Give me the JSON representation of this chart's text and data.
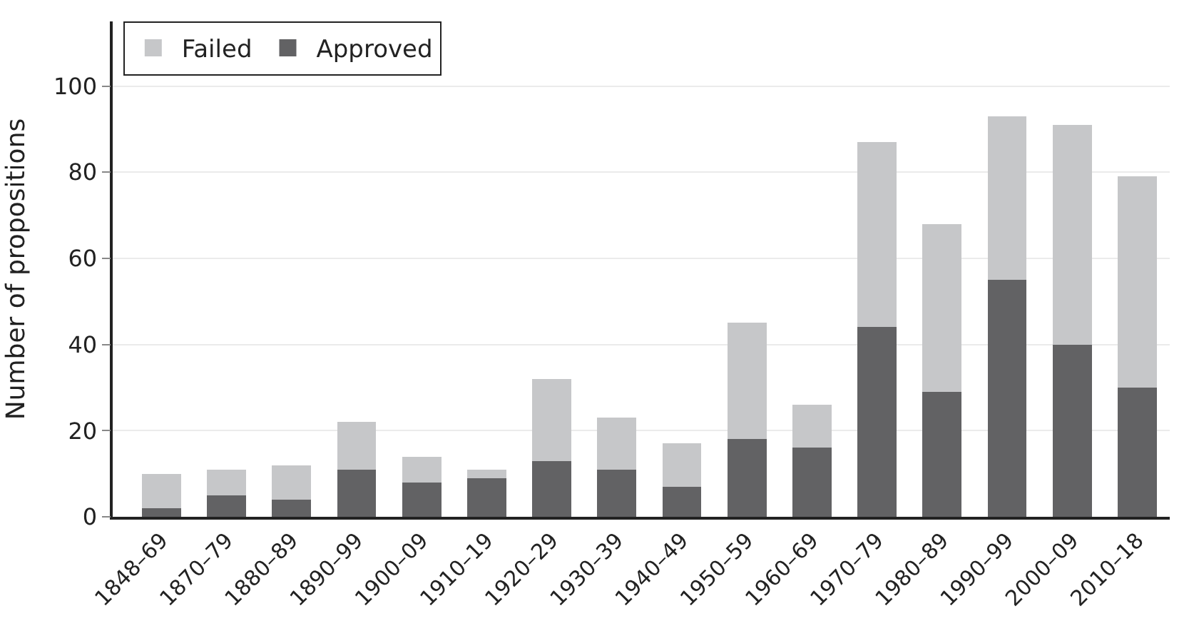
{
  "chart_data": {
    "type": "bar",
    "stacked": true,
    "ylabel": "Number of propositions",
    "categories": [
      "1848–69",
      "1870–79",
      "1880–89",
      "1890–99",
      "1900–09",
      "1910–19",
      "1920–29",
      "1930–39",
      "1940–49",
      "1950–59",
      "1960–69",
      "1970–79",
      "1980–89",
      "1990–99",
      "2000–09",
      "2010–18"
    ],
    "series": [
      {
        "name": "Approved",
        "color": "#626264",
        "values": [
          2,
          5,
          4,
          11,
          8,
          9,
          13,
          11,
          7,
          18,
          16,
          44,
          29,
          55,
          40,
          30
        ]
      },
      {
        "name": "Failed",
        "color": "#c6c7c9",
        "values": [
          8,
          6,
          8,
          11,
          6,
          2,
          19,
          12,
          10,
          27,
          10,
          43,
          39,
          38,
          51,
          49
        ]
      }
    ],
    "ylim": [
      0,
      115
    ],
    "yticks": [
      0,
      20,
      40,
      60,
      80,
      100
    ],
    "grid": "y",
    "legend": "top left"
  }
}
